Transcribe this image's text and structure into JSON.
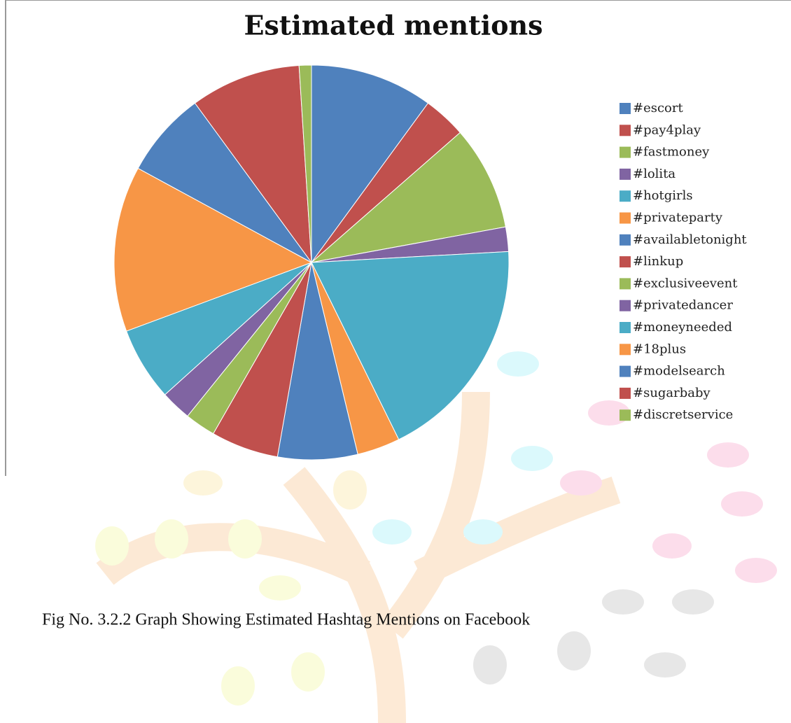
{
  "chart_data": {
    "type": "pie",
    "title": "Estimated mentions",
    "categories": [
      "#escort",
      "#pay4play",
      "#fastmoney",
      "#lolita",
      "#hotgirls",
      "#privateparty",
      "#availabletonight",
      "#linkup",
      "#exclusiveevent",
      "#privatedancer",
      "#moneyneeded",
      "#18plus",
      "#modelsearch",
      "#sugarbaby",
      "#discretservice"
    ],
    "values": [
      10,
      3.5,
      8.5,
      2,
      18.5,
      3.5,
      6.5,
      5.5,
      2.5,
      2.5,
      6,
      13.5,
      7,
      9,
      1
    ],
    "colors": [
      "#4f81bd",
      "#c0504d",
      "#9bbb59",
      "#8064a2",
      "#4bacc6",
      "#f79646",
      "#4f81bd",
      "#c0504d",
      "#9bbb59",
      "#8064a2",
      "#4bacc6",
      "#f79646",
      "#4f81bd",
      "#c0504d",
      "#9bbb59"
    ],
    "legend": "right"
  },
  "caption": "Fig No. 3.2.2 Graph Showing Estimated Hashtag Mentions on Facebook"
}
